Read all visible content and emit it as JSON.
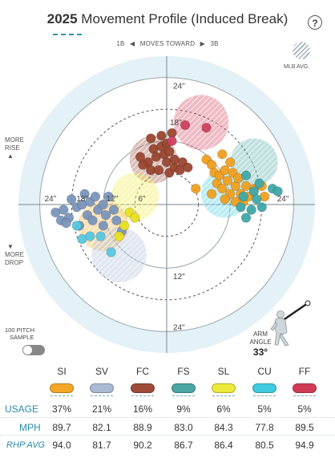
{
  "header": {
    "year": "2025",
    "title": "Movement Profile (Induced Break)",
    "help": "?"
  },
  "moves": {
    "left": "1B",
    "label": "MOVES TOWARD",
    "right": "3B"
  },
  "legend": {
    "mlb_avg": "MLB AVG."
  },
  "side_labels": {
    "rise": [
      "MORE",
      "RISE"
    ],
    "drop": [
      "MORE",
      "DROP"
    ],
    "up_arrow": "▲",
    "down_arrow": "▼"
  },
  "sample": {
    "label_line1": "100 PITCH",
    "label_line2": "SAMPLE"
  },
  "arm": {
    "line1": "ARM",
    "line2": "ANGLE",
    "value": "33°"
  },
  "chart_data": {
    "type": "scatter",
    "xlabel": "",
    "ylabel": "",
    "xlim": [
      -28,
      28
    ],
    "ylim": [
      -28,
      28
    ],
    "ring_labels": {
      "top_outer": "24\"",
      "top_inner": "12\"",
      "left_outer": "24\"",
      "left_mid": "18\"",
      "left_inner": "12\"",
      "left_six": "6\"",
      "right_outer": "24\"",
      "bottom_inner": "12\"",
      "bottom_outer": "24\"",
      "top_ring18": "18\""
    },
    "series": [
      {
        "name": "SI",
        "color": "#7b95bc",
        "points": [
          [
            -21,
            -1.5
          ],
          [
            -20,
            -3
          ],
          [
            -19.5,
            -1
          ],
          [
            -18.5,
            -2.5
          ],
          [
            -18,
            1
          ],
          [
            -17,
            -0.5
          ],
          [
            -16,
            0
          ],
          [
            -15.5,
            2
          ],
          [
            -15,
            -2
          ],
          [
            -14.5,
            0.5
          ],
          [
            -14,
            -3
          ],
          [
            -13.5,
            1.5
          ],
          [
            -13,
            -1
          ],
          [
            -12,
            0
          ],
          [
            -12,
            -4
          ],
          [
            -11.5,
            -2
          ],
          [
            -11,
            1.5
          ],
          [
            -10,
            -1
          ],
          [
            -9.5,
            -3
          ],
          [
            -8.5,
            -5
          ],
          [
            -16.5,
            -4
          ],
          [
            -19,
            -3.5
          ]
        ]
      },
      {
        "name": "SV",
        "color": "#5ac8e0",
        "points": [
          [
            -17,
            -4
          ],
          [
            -16,
            -6.5
          ],
          [
            -14.5,
            -6
          ],
          [
            -12.5,
            -6
          ],
          [
            -10.5,
            -9
          ]
        ]
      },
      {
        "name": "FC",
        "color": "#9a4630",
        "points": [
          [
            -3,
            12.5
          ],
          [
            -2.5,
            10.5
          ],
          [
            -2,
            9
          ],
          [
            -1,
            11
          ],
          [
            -0.5,
            9.5
          ],
          [
            0,
            8
          ],
          [
            0,
            11.5
          ],
          [
            0.5,
            10
          ],
          [
            -3.5,
            8
          ],
          [
            -4.5,
            7.5
          ],
          [
            -3,
            6.5
          ],
          [
            -1.5,
            6.5
          ],
          [
            0.5,
            6
          ],
          [
            1.5,
            7
          ],
          [
            1.5,
            8.5
          ],
          [
            2.5,
            6.5
          ],
          [
            3,
            8
          ],
          [
            4,
            7
          ],
          [
            1,
            13.5
          ],
          [
            -1,
            13
          ],
          [
            -5,
            9
          ]
        ]
      },
      {
        "name": "FS",
        "color": "#f0a020",
        "points": [
          [
            7.5,
            8.5
          ],
          [
            8.5,
            7.5
          ],
          [
            9,
            6
          ],
          [
            9.5,
            4
          ],
          [
            10,
            5.5
          ],
          [
            10.5,
            3
          ],
          [
            11,
            6.5
          ],
          [
            11.5,
            4.5
          ],
          [
            12,
            2
          ],
          [
            12.5,
            6
          ],
          [
            12,
            8
          ],
          [
            13,
            3.5
          ],
          [
            13.5,
            5
          ],
          [
            14,
            2
          ],
          [
            14.5,
            0.5
          ],
          [
            15,
            3.5
          ],
          [
            15.5,
            1.5
          ],
          [
            13,
            0.5
          ],
          [
            11,
            1
          ],
          [
            16.5,
            3
          ],
          [
            18,
            3.5
          ],
          [
            18.5,
            1.5
          ],
          [
            8.5,
            2
          ],
          [
            5.5,
            3
          ],
          [
            10.5,
            9.5
          ]
        ]
      },
      {
        "name": "SL",
        "color": "#e8e020",
        "points": [
          [
            -7,
            -1.5
          ],
          [
            -8,
            -4
          ],
          [
            -9,
            -6
          ],
          [
            -6,
            -2.5
          ]
        ]
      },
      {
        "name": "CU",
        "color": "#40a8a8",
        "points": [
          [
            15,
            5.5
          ],
          [
            16.5,
            2.5
          ],
          [
            14,
            -0.5
          ],
          [
            16,
            -1
          ],
          [
            14.5,
            1.5
          ],
          [
            17,
            1
          ],
          [
            18,
            -0.5
          ],
          [
            17.5,
            4
          ],
          [
            20,
            3
          ],
          [
            21,
            2.5
          ],
          [
            15,
            -2.5
          ]
        ]
      },
      {
        "name": "FF",
        "color": "#d04060",
        "points": [
          [
            3.5,
            15
          ],
          [
            7.5,
            14.5
          ],
          [
            1,
            12
          ]
        ]
      }
    ],
    "mlb_avg_regions": [
      {
        "name": "FF",
        "x": 6.5,
        "y": 15.5,
        "r": 5.2
      },
      {
        "name": "FC",
        "x": -2.5,
        "y": 8.5,
        "r": 4.5
      },
      {
        "name": "SL",
        "x": -6,
        "y": 1.5,
        "r": 4.5
      },
      {
        "name": "FS",
        "x": 16.5,
        "y": 8,
        "r": 4.5
      },
      {
        "name": "CU",
        "x": 11,
        "y": 2,
        "r": 4.5
      },
      {
        "name": "SI",
        "x": -12,
        "y": -4,
        "r": 4.8
      },
      {
        "name": "SV",
        "x": -9,
        "y": -9.5,
        "r": 5.2
      }
    ]
  },
  "table": {
    "columns": [
      {
        "name": "SI",
        "color": "#f4a829",
        "usage": "37%",
        "mph": "89.7",
        "rhp": "94.0"
      },
      {
        "name": "SV",
        "color": "#a9bad2",
        "usage": "21%",
        "mph": "82.1",
        "rhp": "81.7"
      },
      {
        "name": "FC",
        "color": "#9e4b39",
        "usage": "16%",
        "mph": "88.9",
        "rhp": "90.2"
      },
      {
        "name": "FS",
        "color": "#4aa6a3",
        "usage": "9%",
        "mph": "83.0",
        "rhp": "86.7"
      },
      {
        "name": "SL",
        "color": "#ece93a",
        "usage": "6%",
        "mph": "84.3",
        "rhp": "86.4"
      },
      {
        "name": "CU",
        "color": "#3ecbe0",
        "usage": "5%",
        "mph": "77.8",
        "rhp": "80.5"
      },
      {
        "name": "FF",
        "color": "#d03b55",
        "usage": "5%",
        "mph": "89.5",
        "rhp": "94.9"
      }
    ],
    "row_labels": {
      "usage": "USAGE",
      "mph": "MPH",
      "rhp": "RHP AVG"
    }
  }
}
